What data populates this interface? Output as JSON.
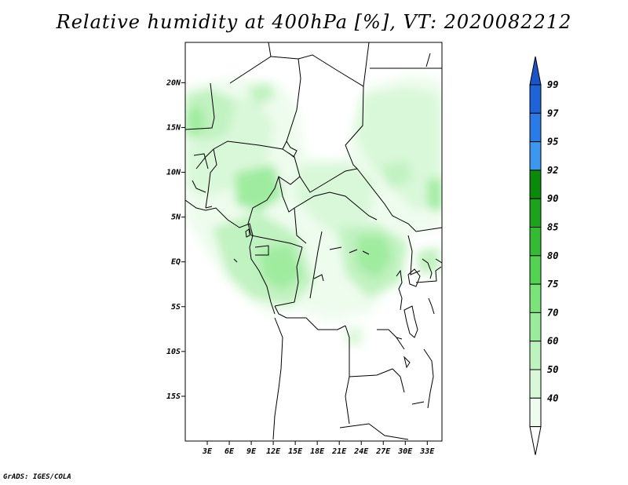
{
  "title": "Relative humidity at 400hPa [%], VT: 2020082212",
  "credit": "GrADS: IGES/COLA",
  "map": {
    "lat_ticks": [
      "20N",
      "15N",
      "10N",
      "5N",
      "EQ",
      "5S",
      "10S",
      "15S"
    ],
    "lon_ticks": [
      "3E",
      "6E",
      "9E",
      "12E",
      "15E",
      "18E",
      "21E",
      "24E",
      "27E",
      "30E",
      "33E"
    ],
    "lat_values": [
      20,
      15,
      10,
      5,
      0,
      -5,
      -10,
      -15
    ],
    "lon_values": [
      3,
      6,
      9,
      12,
      15,
      18,
      21,
      24,
      27,
      30,
      33
    ],
    "lat_range": [
      -20,
      24.5
    ],
    "lon_range": [
      0,
      35
    ]
  },
  "colorbar": {
    "labels": [
      "99",
      "97",
      "95",
      "92",
      "90",
      "85",
      "80",
      "75",
      "70",
      "60",
      "50",
      "40"
    ],
    "colors": [
      "#1f63d8",
      "#2a7be8",
      "#3c97f0",
      "#0a8a0a",
      "#1ca31c",
      "#34bb34",
      "#52d352",
      "#7ae47a",
      "#9aeb9a",
      "#bef2be",
      "#d8f8d8",
      "#eefcee"
    ],
    "top_color": "#1a55c8",
    "bottom_color": "#ffffff"
  }
}
